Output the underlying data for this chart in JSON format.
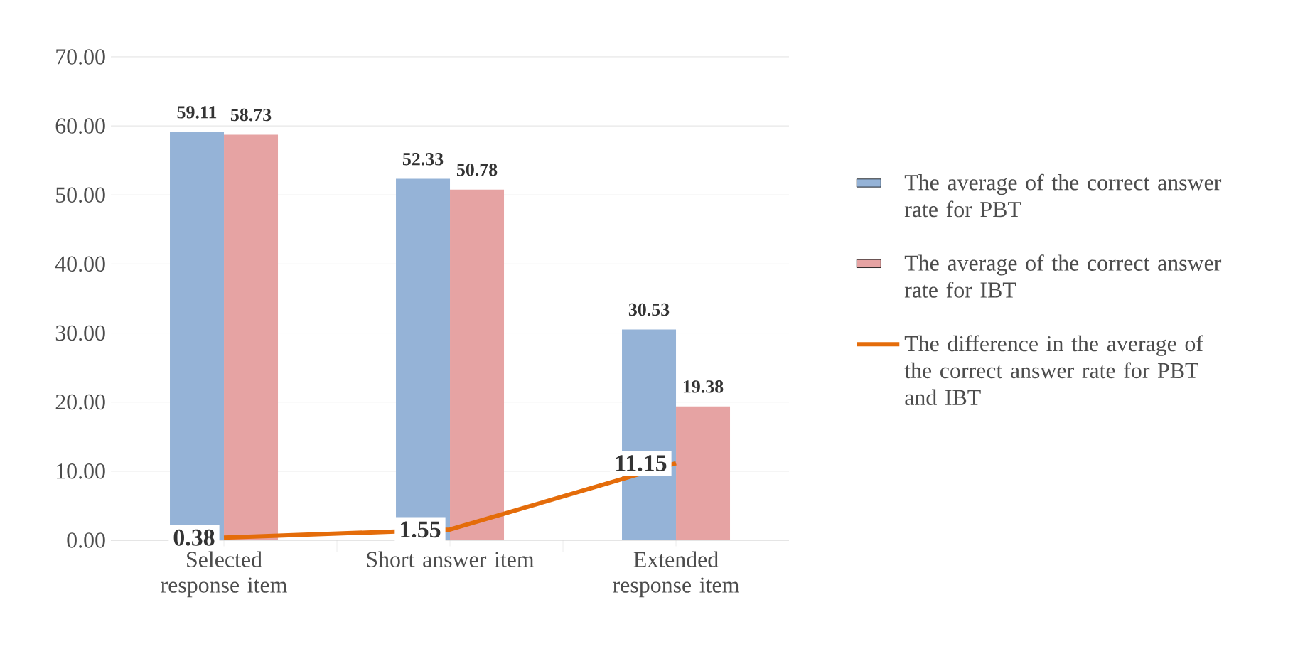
{
  "chart_data": {
    "type": "bar",
    "categories": [
      "Selected response item",
      "Short answer item",
      "Extended response item"
    ],
    "series": [
      {
        "name": "The average of the correct answer rate for PBT",
        "color": "#95b3d7",
        "values": [
          59.11,
          52.33,
          30.53
        ],
        "value_labels": [
          "59.11",
          "52.33",
          "30.53"
        ]
      },
      {
        "name": "The average of the correct answer rate for IBT",
        "color": "#e6a3a3",
        "values": [
          58.73,
          50.78,
          19.38
        ],
        "value_labels": [
          "58.73",
          "50.78",
          "19.38"
        ]
      },
      {
        "name": "The difference in the average of the correct answer rate for PBT and IBT",
        "type": "line",
        "color": "#e46c0a",
        "values": [
          0.38,
          1.55,
          11.15
        ],
        "value_labels": [
          "0.38",
          "1.55",
          "11.15"
        ]
      }
    ],
    "ylim": [
      0,
      70
    ],
    "yticks": [
      {
        "value": 0,
        "label": "0.00"
      },
      {
        "value": 10,
        "label": "10.00"
      },
      {
        "value": 20,
        "label": "20.00"
      },
      {
        "value": 30,
        "label": "30.00"
      },
      {
        "value": 40,
        "label": "40.00"
      },
      {
        "value": 50,
        "label": "50.00"
      },
      {
        "value": 60,
        "label": "60.00"
      },
      {
        "value": 70,
        "label": "70.00"
      }
    ],
    "grid": "y",
    "legend": "right",
    "marker": "none",
    "line_style": "solid"
  }
}
